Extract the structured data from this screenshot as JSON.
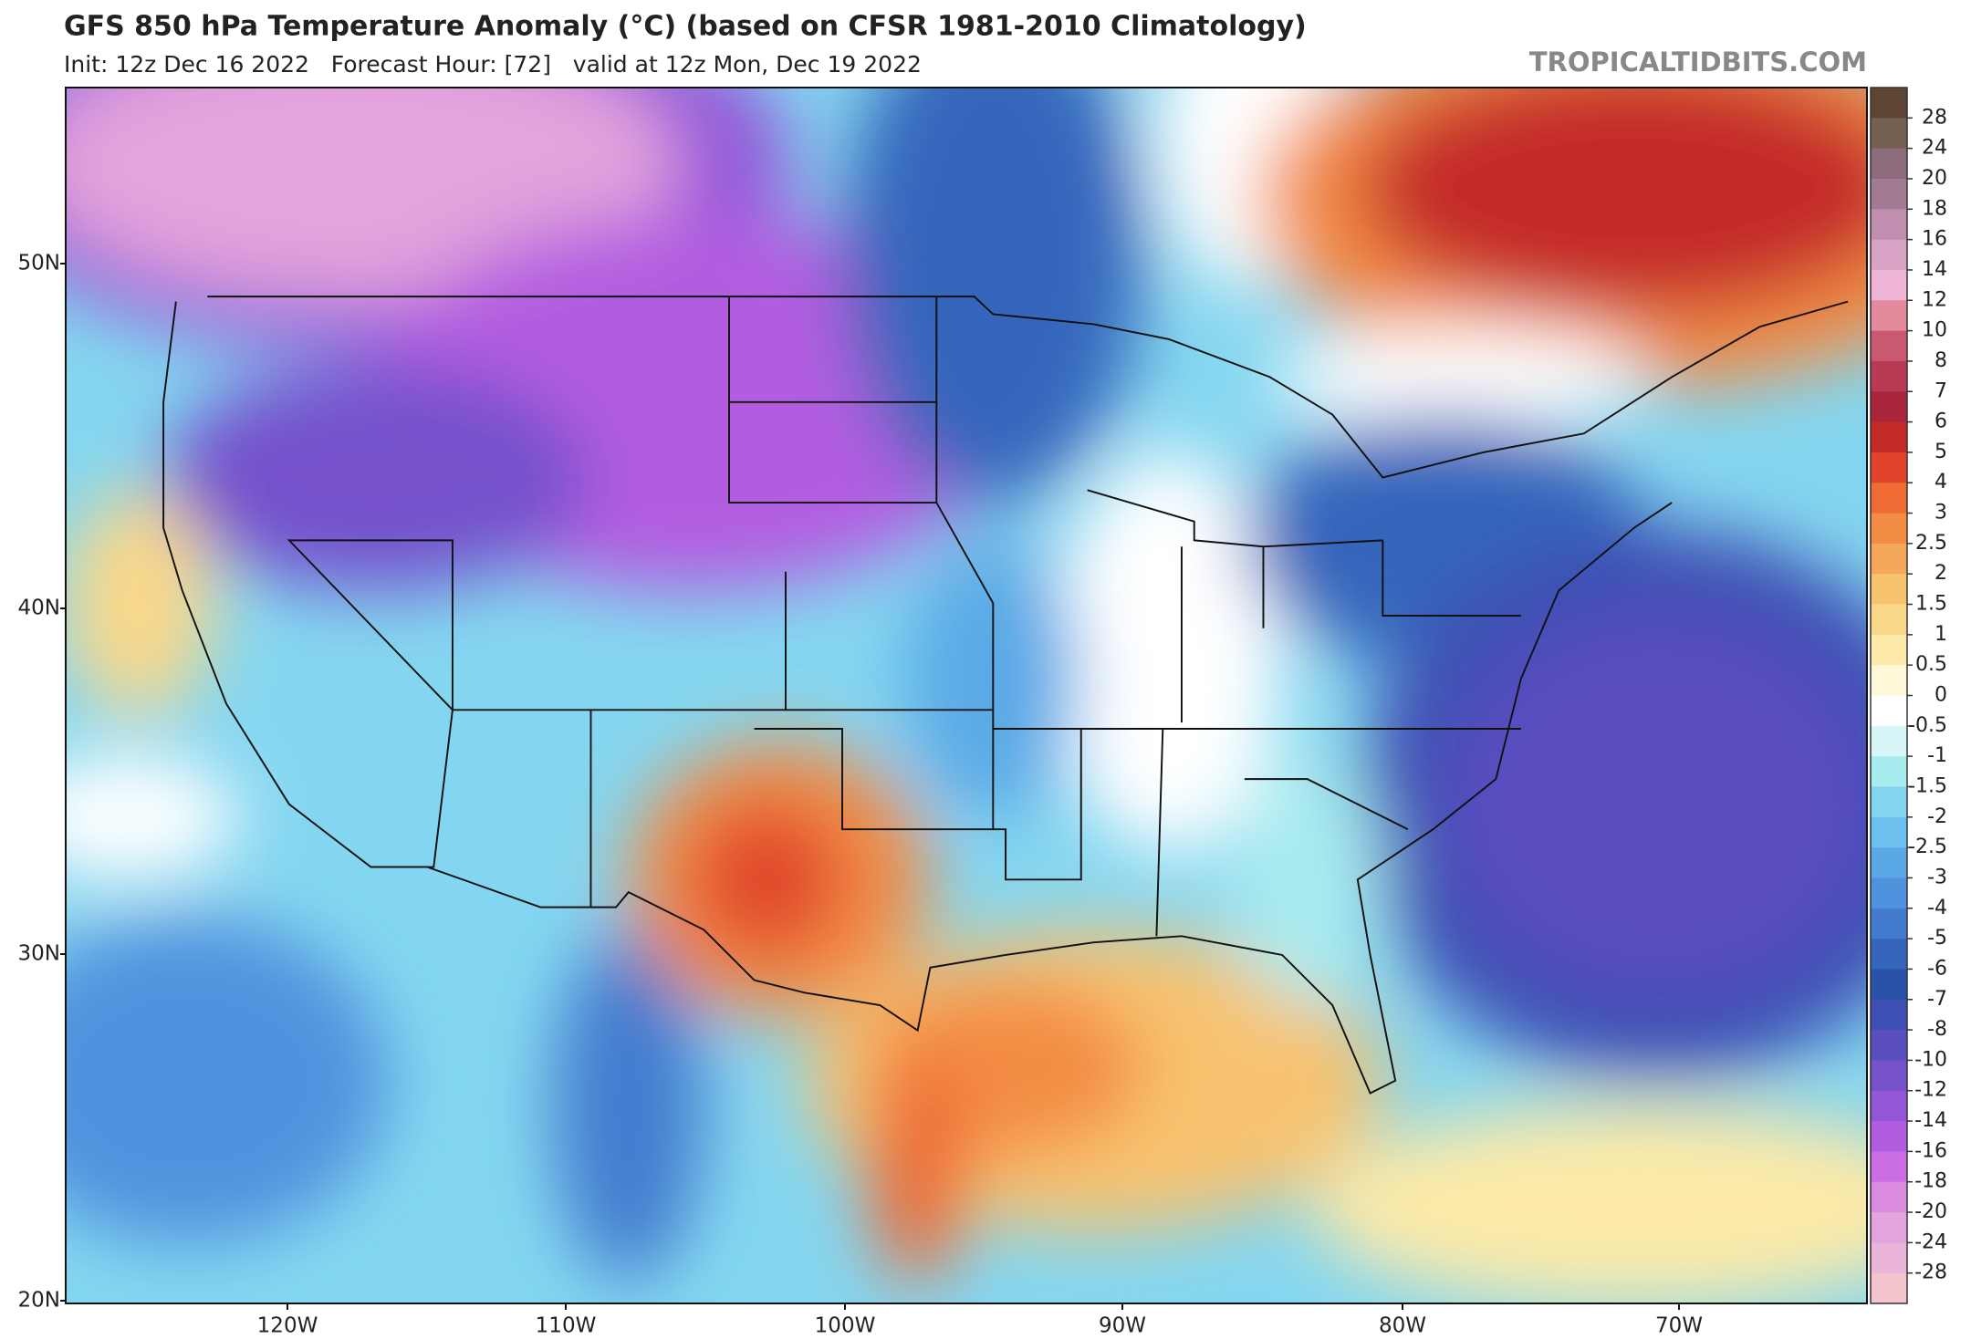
{
  "header": {
    "title": "GFS 850 hPa Temperature Anomaly (°C) (based on CFSR 1981-2010 Climatology)",
    "subtitle": "Init: 12z Dec 16 2022   Forecast Hour: [72]   valid at 12z Mon, Dec 19 2022",
    "watermark": "TROPICALTIDBITS.COM"
  },
  "map": {
    "lat_labels": [
      "50N",
      "40N",
      "30N",
      "20N"
    ],
    "lon_labels": [
      "120W",
      "110W",
      "100W",
      "90W",
      "80W",
      "70W"
    ]
  },
  "colorbar": {
    "labels": [
      "28",
      "24",
      "20",
      "18",
      "16",
      "14",
      "12",
      "10",
      "8",
      "7",
      "6",
      "5",
      "4",
      "3",
      "2.5",
      "2",
      "1.5",
      "1",
      "0.5",
      "0",
      "-0.5",
      "-1",
      "-1.5",
      "-2",
      "-2.5",
      "-3",
      "-4",
      "-5",
      "-6",
      "-7",
      "-8",
      "-10",
      "-12",
      "-14",
      "-16",
      "-18",
      "-20",
      "-24",
      "-28"
    ],
    "colors": [
      "#5e4432",
      "#75604f",
      "#8c6c7a",
      "#a27a91",
      "#c08fb0",
      "#d9a3c6",
      "#eeb5d7",
      "#e48a9d",
      "#c95870",
      "#b83a55",
      "#a8253a",
      "#c42a2a",
      "#e0452b",
      "#ee6b34",
      "#f38c45",
      "#f6a85a",
      "#f8c36f",
      "#fad88a",
      "#fdeaa8",
      "#fff8d8",
      "#ffffff",
      "#d8f6f7",
      "#a9ecf0",
      "#84d6f0",
      "#6cc0ee",
      "#5aa9e6",
      "#4f93de",
      "#437ccf",
      "#3566bc",
      "#2a52a8",
      "#3e4fb3",
      "#5a4ec0",
      "#7551cc",
      "#9456d8",
      "#b25de0",
      "#cc6ee3",
      "#da8be0",
      "#e3a3dc",
      "#eab4d8",
      "#f4c4cc"
    ]
  }
}
